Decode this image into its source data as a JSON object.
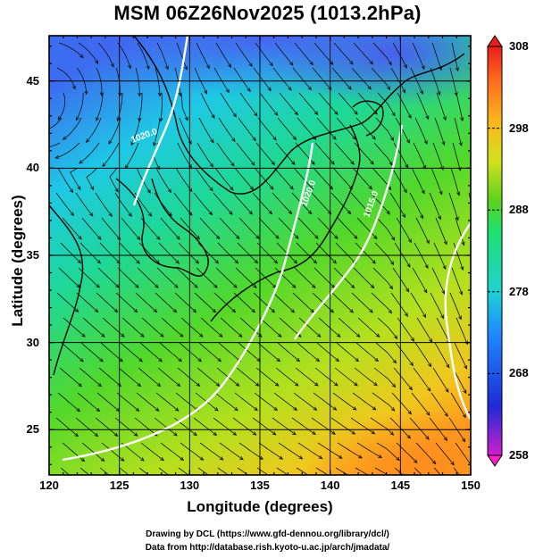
{
  "title": "MSM 06Z26Nov2025 (1013.2hPa)",
  "map": {
    "xlabel": "Longitude (degrees)",
    "ylabel": "Latitude  (degrees)",
    "lon_range": [
      120,
      150
    ],
    "lat_range": [
      22.4,
      47.6
    ],
    "x_ticks": [
      "120",
      "125",
      "130",
      "135",
      "140",
      "145",
      "150"
    ],
    "y_ticks": [
      "25",
      "30",
      "35",
      "40",
      "45"
    ],
    "field": "temperature shading with streamlines and white pressure contours",
    "contour_labels": [
      "1020.0",
      "1020.0",
      "1015.0"
    ]
  },
  "colorbar": {
    "min": 258,
    "max": 308,
    "ticks": [
      "308",
      "298",
      "288",
      "278",
      "268",
      "258"
    ],
    "colors": [
      "#d21ecf",
      "#1e2bd6",
      "#1e8cff",
      "#1ed2d2",
      "#1ee16e",
      "#5ad21e",
      "#d2e11e",
      "#ffb41e",
      "#ff6a1e",
      "#e81e1e"
    ]
  },
  "credits": {
    "line1": "Drawing by DCL (https://www.gfd-dennou.org/library/dcl/)",
    "line2": "Data from http://database.rish.kyoto-u.ac.jp/arch/jmadata/"
  }
}
